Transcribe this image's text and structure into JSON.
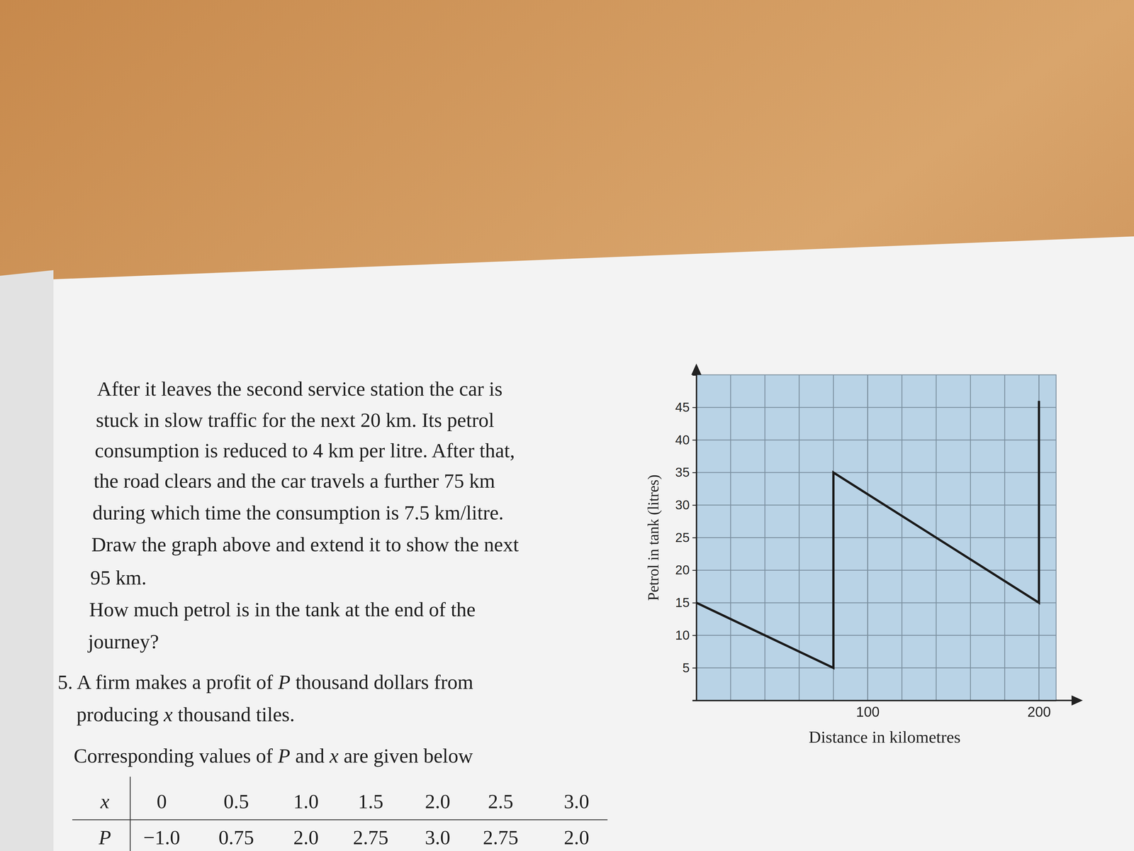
{
  "page": {
    "paragraph": [
      "After it leaves the second service station the car is",
      "stuck in slow traffic for the next 20 km. Its petrol",
      "consumption is reduced to 4 km per litre. After that,",
      "the road clears and the car travels a further 75 km",
      "during which time the consumption is 7.5 km/litre.",
      "Draw the graph above and extend it to show the next",
      "95 km.",
      "How much petrol is in the tank at the end of the",
      "journey?"
    ],
    "question_5": {
      "lines": [
        "5. A firm makes a profit of P thousand dollars from",
        "producing x thousand tiles.",
        "Corresponding values of P and x are given below"
      ]
    },
    "table": {
      "rows": [
        [
          "x",
          "0",
          "0.5",
          "1.0",
          "1.5",
          "2.0",
          "2.5",
          "3.0"
        ],
        [
          "P",
          "−1.0",
          "0.75",
          "2.0",
          "2.75",
          "3.0",
          "2.75",
          "2.0"
        ]
      ]
    }
  },
  "chart_data": {
    "type": "line",
    "x_label": "Distance in kilometres",
    "y_label": "Petrol in tank (litres)",
    "x": [
      0,
      80,
      80,
      200,
      200
    ],
    "values": [
      15,
      5,
      35,
      15,
      46
    ],
    "color": "#1a1a1a",
    "xlim": [
      0,
      210
    ],
    "ylim": [
      0,
      50
    ],
    "xticks": [
      100,
      200
    ],
    "yticks": [
      5,
      10,
      15,
      20,
      25,
      30,
      35,
      40,
      45
    ],
    "grid": true
  }
}
